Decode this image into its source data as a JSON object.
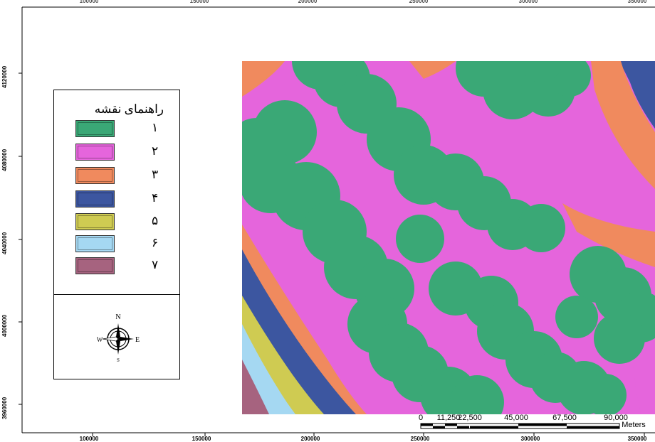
{
  "axes": {
    "x_bottom_ticks": [
      "100000",
      "150000",
      "200000",
      "250000",
      "300000",
      "350000"
    ],
    "x_top_ticks": [
      "100000",
      "150000",
      "200000",
      "250000",
      "300000",
      "350000"
    ],
    "y_left_ticks": [
      "4120000",
      "4080000",
      "4040000",
      "4000000",
      "3960000"
    ]
  },
  "legend": {
    "title": "راهنمای نقشه",
    "items": [
      {
        "label": "۱",
        "color": "#3aa876"
      },
      {
        "label": "۲",
        "color": "#e565dc"
      },
      {
        "label": "۳",
        "color": "#f08a5e"
      },
      {
        "label": "۴",
        "color": "#3c56a0"
      },
      {
        "label": "۵",
        "color": "#cfcb52"
      },
      {
        "label": "۶",
        "color": "#a5d8f2"
      },
      {
        "label": "۷",
        "color": "#a6637f"
      }
    ]
  },
  "north_arrow": {
    "n": "N",
    "e": "E",
    "w": "W",
    "s": "S"
  },
  "scale_bar": {
    "labels": [
      "0",
      "11,250",
      "22,500",
      "45,000",
      "67,500",
      "90,000"
    ],
    "unit": "Meters"
  }
}
